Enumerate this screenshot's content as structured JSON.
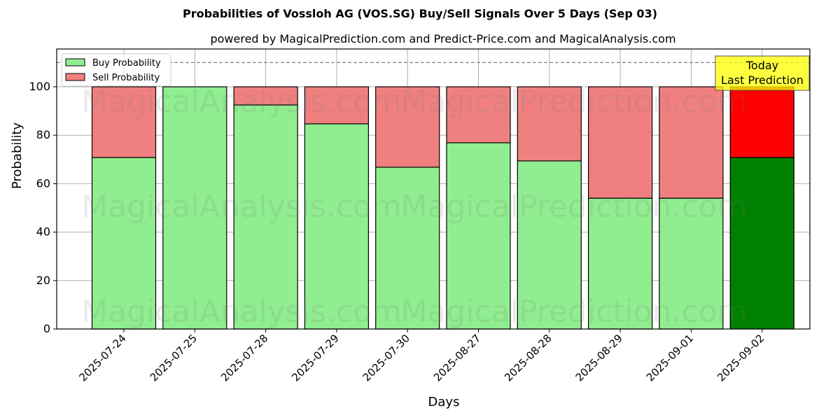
{
  "chart_data": {
    "type": "bar",
    "stacked": true,
    "title": "Probabilities of Vossloh AG (VOS.SG) Buy/Sell Signals Over 5 Days (Sep 03)",
    "subtitle": "powered by MagicalPrediction.com and Predict-Price.com and MagicalAnalysis.com",
    "xlabel": "Days",
    "ylabel": "Probability",
    "ylim": [
      0,
      115
    ],
    "yticks": [
      0,
      20,
      40,
      60,
      80,
      100
    ],
    "grid": true,
    "legend_position": "upper left",
    "categories": [
      "2025-07-24",
      "2025-07-25",
      "2025-07-28",
      "2025-07-29",
      "2025-07-30",
      "2025-08-27",
      "2025-08-28",
      "2025-08-29",
      "2025-09-01",
      "2025-09-02"
    ],
    "series": [
      {
        "name": "Buy Probability",
        "color": "#90ee90",
        "values": [
          70.8,
          100.0,
          92.5,
          84.7,
          66.8,
          76.9,
          69.4,
          54.0,
          54.0,
          70.8
        ]
      },
      {
        "name": "Sell Probability",
        "color": "#f08080",
        "values": [
          29.2,
          0.0,
          7.5,
          15.3,
          33.2,
          23.1,
          30.6,
          46.0,
          46.0,
          29.2
        ]
      }
    ],
    "highlight": {
      "index": 9,
      "buy_color": "#008000",
      "sell_color": "#ff0000"
    },
    "annotations": [
      {
        "text": "Today\nLast Prediction",
        "x_index": 9,
        "y": 106,
        "box_color": "#ffff00"
      },
      {
        "type": "hline",
        "y": 110,
        "style": "dashed",
        "color": "#808080"
      }
    ],
    "watermarks": [
      "MagicalAnalysis.com",
      "MagicalPrediction.com"
    ]
  }
}
